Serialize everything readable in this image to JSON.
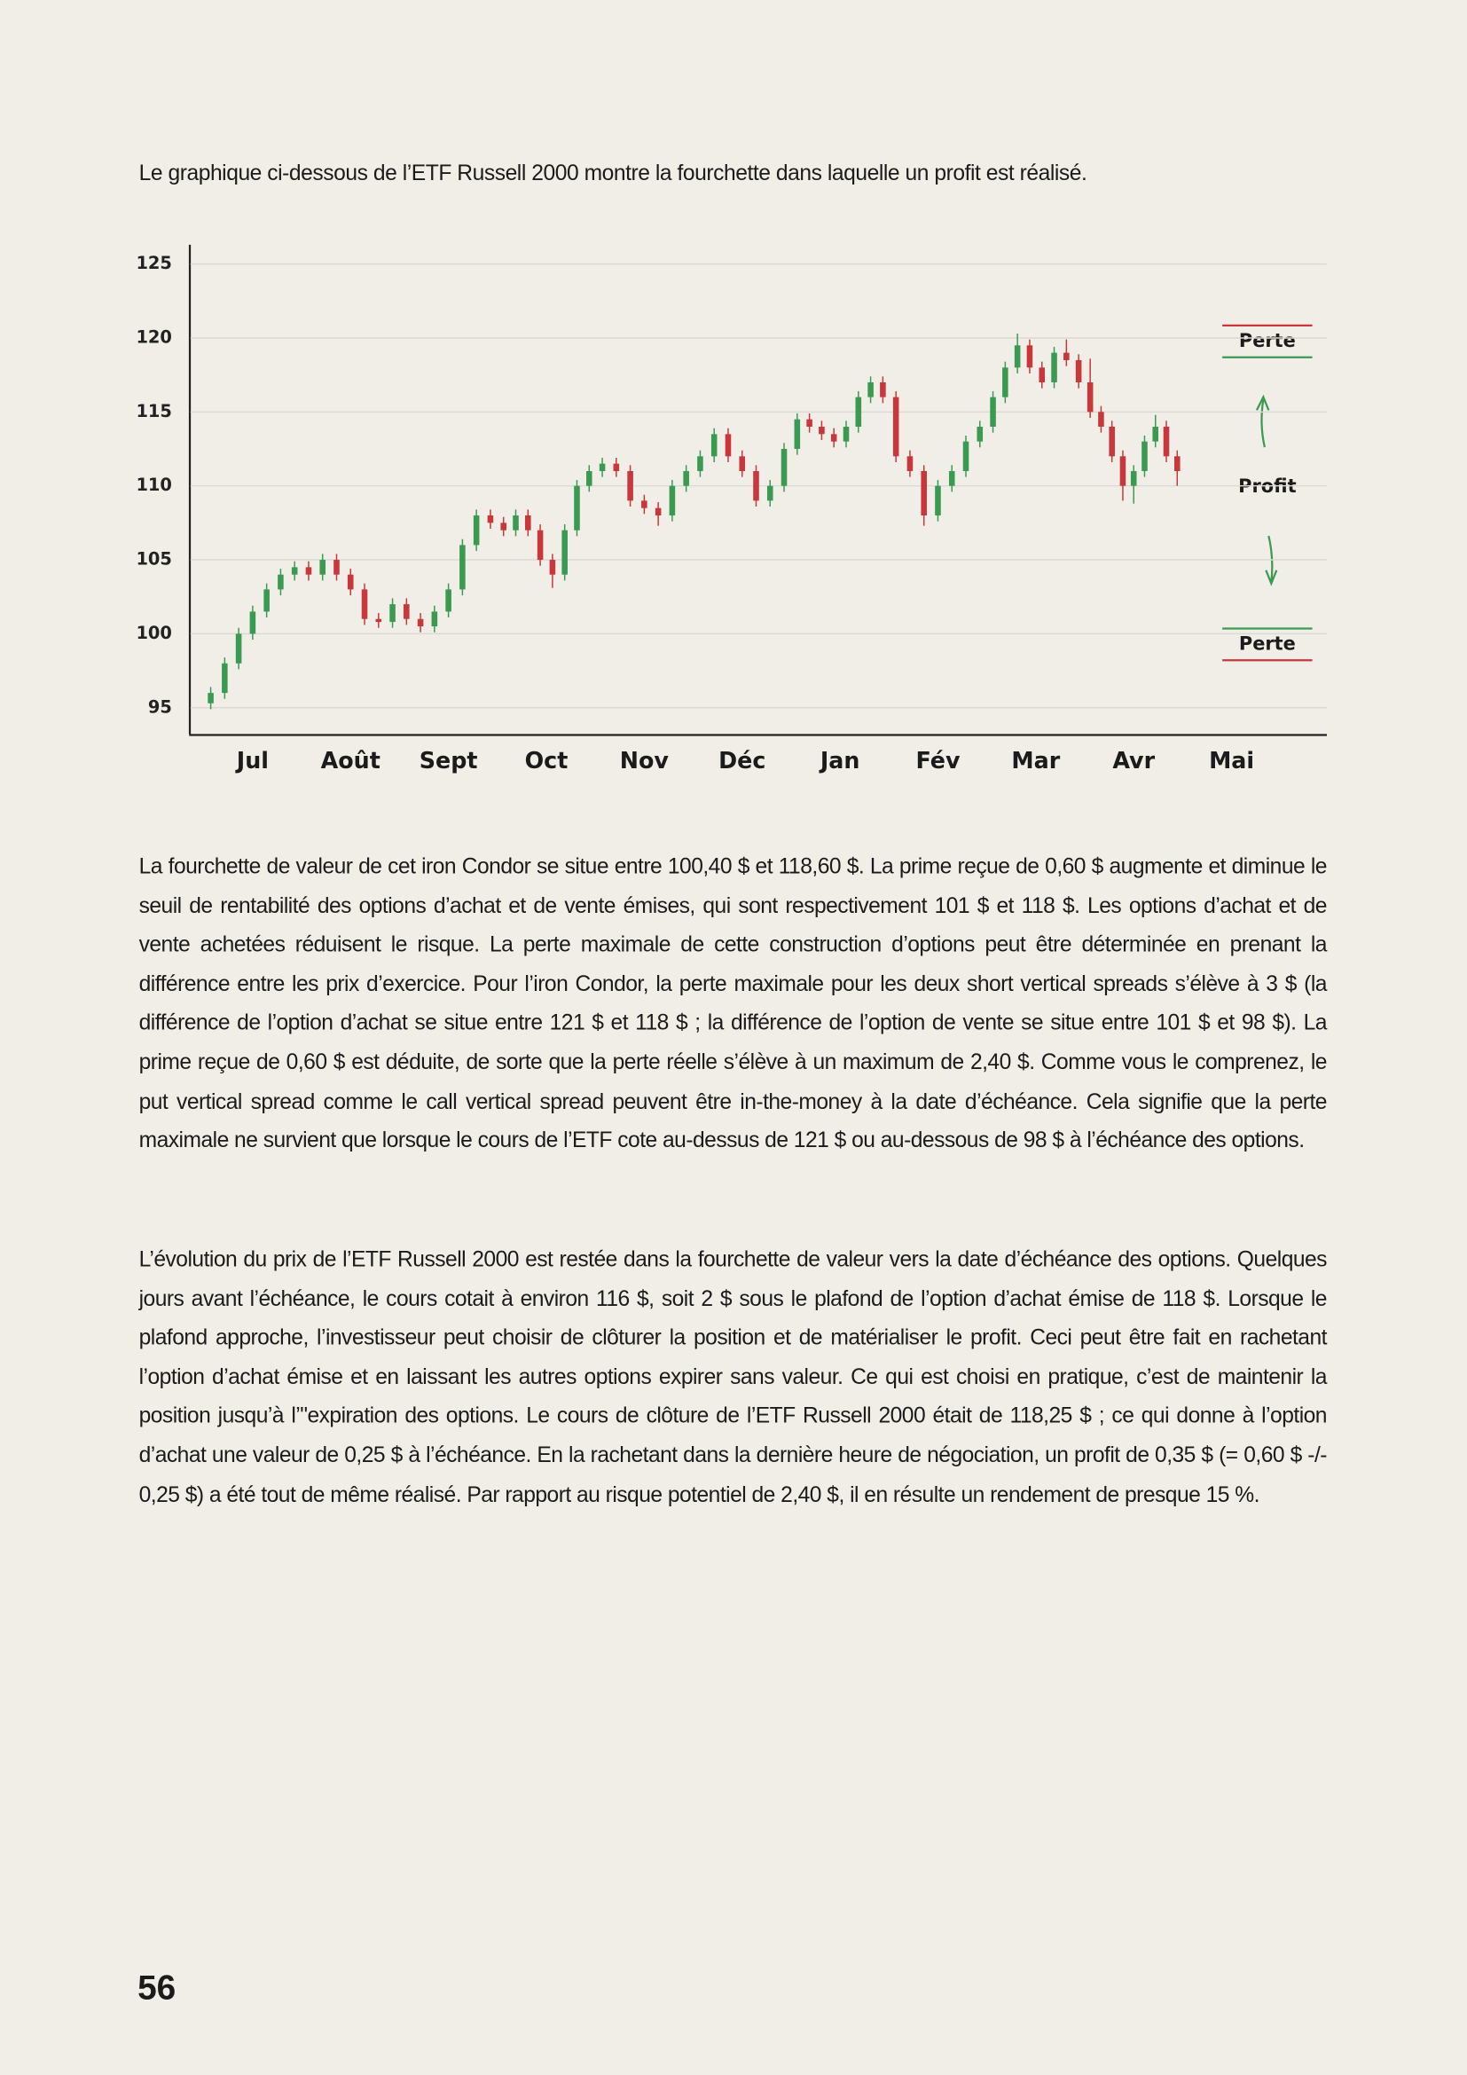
{
  "intro": "Le graphique ci-dessous de l’ETF Russell 2000 montre la fourchette dans laquelle un profit est réalisé.",
  "chart_data": {
    "type": "candlestick",
    "categories": [
      "Jul",
      "Août",
      "Sept",
      "Oct",
      "Nov",
      "Déc",
      "Jan",
      "Fév",
      "Mar",
      "Avr",
      "Mai"
    ],
    "ohlc": [
      [
        [
          95.3,
          96.4,
          94.9,
          96
        ],
        [
          96,
          98.4,
          95.6,
          98
        ],
        [
          98,
          100.4,
          97.6,
          100
        ],
        [
          100,
          101.9,
          99.6,
          101.5
        ],
        [
          101.5,
          103.4,
          101.1,
          103
        ],
        [
          103,
          104.4,
          102.6,
          104
        ],
        [
          104,
          104.9,
          103.6,
          104.5
        ]
      ],
      [
        [
          104.5,
          104.9,
          103.6,
          104
        ],
        [
          104,
          105.4,
          103.6,
          105
        ],
        [
          105,
          105.4,
          103.6,
          104
        ],
        [
          104,
          104.4,
          102.6,
          103
        ],
        [
          103,
          103.4,
          100.6,
          101
        ],
        [
          101,
          101.4,
          100.4,
          100.8
        ],
        [
          100.8,
          102.4,
          100.4,
          102
        ]
      ],
      [
        [
          102,
          102.4,
          100.6,
          101
        ],
        [
          101,
          101.4,
          100.1,
          100.5
        ],
        [
          100.5,
          101.9,
          100.1,
          101.5
        ],
        [
          101.5,
          103.4,
          101.1,
          103
        ],
        [
          103,
          106.4,
          102.6,
          106
        ],
        [
          106,
          108.4,
          105.6,
          108
        ],
        [
          108,
          108.4,
          107.1,
          107.5
        ]
      ],
      [
        [
          107.5,
          107.9,
          106.6,
          107
        ],
        [
          107,
          108.4,
          106.6,
          108
        ],
        [
          108,
          108.4,
          106.6,
          107
        ],
        [
          107,
          107.4,
          104.6,
          105
        ],
        [
          105,
          105.4,
          103.1,
          104
        ],
        [
          104,
          107.4,
          103.6,
          107
        ],
        [
          107,
          110.4,
          106.6,
          110
        ],
        [
          110,
          111.4,
          109.6,
          111
        ]
      ],
      [
        [
          111,
          111.9,
          110.6,
          111.5
        ],
        [
          111.5,
          111.9,
          110.6,
          111
        ],
        [
          111,
          111.4,
          108.6,
          109
        ],
        [
          109,
          109.4,
          108.1,
          108.5
        ],
        [
          108.5,
          108.9,
          107.3,
          108
        ],
        [
          108,
          110.4,
          107.6,
          110
        ],
        [
          110,
          111.4,
          109.6,
          111
        ]
      ],
      [
        [
          111,
          112.4,
          110.6,
          112
        ],
        [
          112,
          113.9,
          111.6,
          113.5
        ],
        [
          113.5,
          113.9,
          111.6,
          112
        ],
        [
          112,
          112.4,
          110.6,
          111
        ],
        [
          111,
          111.4,
          108.6,
          109
        ],
        [
          109,
          110.4,
          108.6,
          110
        ],
        [
          110,
          112.9,
          109.6,
          112.5
        ]
      ],
      [
        [
          112.5,
          114.9,
          112.1,
          114.5
        ],
        [
          114.5,
          114.9,
          113.6,
          114
        ],
        [
          114,
          114.4,
          113.1,
          113.5
        ],
        [
          113.5,
          113.9,
          112.6,
          113
        ],
        [
          113,
          114.4,
          112.6,
          114
        ],
        [
          114,
          116.4,
          113.6,
          116
        ],
        [
          116,
          117.4,
          115.6,
          117
        ],
        [
          117,
          117.4,
          115.6,
          116
        ]
      ],
      [
        [
          116,
          116.4,
          111.6,
          112
        ],
        [
          112,
          112.4,
          110.6,
          111
        ],
        [
          111,
          111.4,
          107.3,
          108
        ],
        [
          108,
          110.4,
          107.6,
          110
        ],
        [
          110,
          111.4,
          109.6,
          111
        ],
        [
          111,
          113.4,
          110.6,
          113
        ],
        [
          113,
          114.4,
          112.6,
          114
        ]
      ],
      [
        [
          114,
          116.4,
          113.6,
          116
        ],
        [
          116,
          118.4,
          115.6,
          118
        ],
        [
          118,
          120.3,
          117.6,
          119.5
        ],
        [
          119.5,
          119.9,
          117.6,
          118
        ],
        [
          118,
          118.4,
          116.6,
          117
        ],
        [
          117,
          119.4,
          116.6,
          119
        ],
        [
          119,
          119.9,
          118.1,
          118.5
        ],
        [
          118.5,
          118.9,
          116.6,
          117
        ]
      ],
      [
        [
          117,
          118.6,
          114.6,
          115
        ],
        [
          115,
          115.4,
          113.6,
          114
        ],
        [
          114,
          114.4,
          111.6,
          112
        ],
        [
          112,
          112.4,
          109,
          110
        ],
        [
          110,
          111.4,
          108.8,
          111
        ],
        [
          111,
          113.4,
          110.6,
          113
        ],
        [
          113,
          114.8,
          112.6,
          114
        ],
        [
          114,
          114.4,
          111.6,
          112
        ],
        [
          112,
          112.4,
          110,
          111
        ]
      ],
      []
    ],
    "ylim": [
      93.2,
      126.3
    ],
    "yticks": [
      95,
      100,
      105,
      110,
      115,
      120,
      125
    ],
    "grid": true,
    "up_color": "#3b9a52",
    "down_color": "#c8373b",
    "annotations": {
      "upper": "Perte",
      "middle": "Profit",
      "lower": "Perte"
    }
  },
  "paragraphs": [
    "La fourchette de valeur de cet iron Condor se situe entre 100,40 $ et 118,60 $. La prime reçue de 0,60 $ augmente et diminue le seuil de rentabilité des options d’achat et de vente émises, qui sont respectivement 101 $ et 118 $. Les options d’achat et de vente achetées réduisent le risque. La perte maximale de cette construction d’options peut être déterminée en prenant la différence entre les prix d’exercice. Pour l’iron Condor, la perte maximale pour les deux short vertical spreads s’élève à 3 $ (la différence de l’option d’achat se situe entre 121 $ et  118 $ ; la différence de l’option de vente se situe entre 101 $ et 98 $). La prime reçue de 0,60 $ est déduite, de sorte que la perte réelle s’élève à un maximum de 2,40 $. Comme vous le comprenez, le put vertical spread comme le call vertical spread peuvent être in-the-money à la date d’échéance. Cela signifie que la perte maximale ne survient que lorsque le cours de l’ETF cote au-dessus de 121 $ ou au-dessous de 98 $ à l’échéance des options.",
    "L’évolution du prix de l’ETF Russell 2000 est restée dans la fourchette de valeur vers la date d’échéance des options. Quelques jours avant l’échéance, le cours cotait à environ 116 $, soit 2 $ sous le plafond de l’option d’achat émise de 118 $. Lorsque le plafond approche, l’investisseur peut choisir de clôturer la position et de matérialiser le profit. Ceci peut être fait en rachetant l’option d’achat émise et en laissant les autres options expirer sans valeur. Ce qui est choisi en pratique, c’est de maintenir la position jusqu’à l’\"expiration des options. Le cours de clôture de l’ETF Russell 2000 était de 118,25 $ ; ce qui donne à l’option d’achat une valeur de 0,25 $ à l’échéance. En la rachetant dans la dernière heure de négociation, un profit de 0,35 $ (= 0,60 $ -/- 0,25 $) a été tout de même réalisé. Par rapport au risque potentiel de 2,40 $, il en résulte un rendement de presque 15 %."
  ],
  "page_number": "56"
}
